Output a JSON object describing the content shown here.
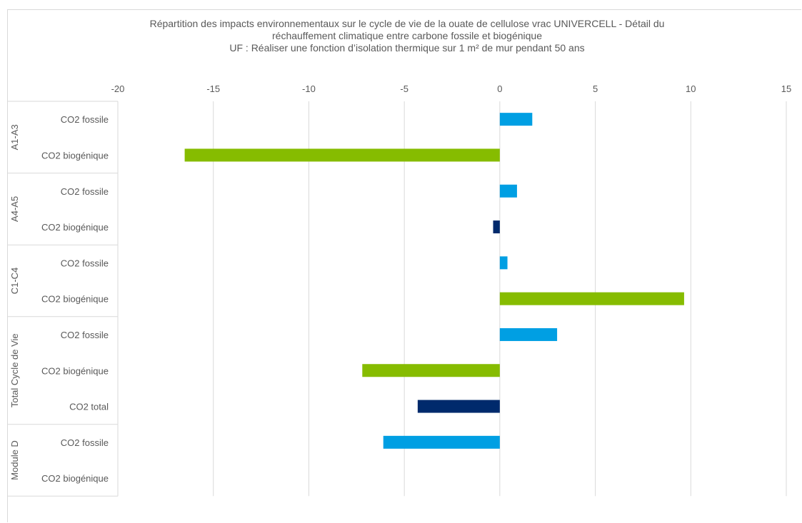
{
  "chart_data": {
    "type": "bar",
    "orientation": "horizontal",
    "title_lines": [
      "Répartition des impacts environnementaux sur le cycle de vie de la ouate de cellulose vrac UNIVERCELL - Détail du",
      "réchauffement climatique entre carbone fossile et biogénique",
      "UF : Réaliser une fonction d’isolation thermique sur 1 m² de mur pendant 50 ans"
    ],
    "xlim": [
      -20,
      15
    ],
    "xticks": [
      -20,
      -15,
      -10,
      -5,
      0,
      5,
      10,
      15
    ],
    "x_axis_position": "top",
    "grid": true,
    "colors": {
      "fossile": "#009fe3",
      "biogenique": "#86bc00",
      "dark": "#002a6c"
    },
    "groups": [
      {
        "name": "A1-A3",
        "rows": [
          {
            "label": "CO2 fossile",
            "value": 1.7,
            "color": "#009fe3"
          },
          {
            "label": "CO2 biogénique",
            "value": -16.5,
            "color": "#86bc00"
          }
        ]
      },
      {
        "name": "A4-A5",
        "rows": [
          {
            "label": "CO2 fossile",
            "value": 0.9,
            "color": "#009fe3"
          },
          {
            "label": "CO2 biogénique",
            "value": -0.35,
            "color": "#002a6c"
          }
        ]
      },
      {
        "name": "C1-C4",
        "rows": [
          {
            "label": "CO2 fossile",
            "value": 0.4,
            "color": "#009fe3"
          },
          {
            "label": "CO2 biogénique",
            "value": 9.65,
            "color": "#86bc00"
          }
        ]
      },
      {
        "name": "Total Cycle de Vie",
        "rows": [
          {
            "label": "CO2 fossile",
            "value": 3.0,
            "color": "#009fe3"
          },
          {
            "label": "CO2 biogénique",
            "value": -7.2,
            "color": "#86bc00"
          },
          {
            "label": "CO2 total",
            "value": -4.3,
            "color": "#002a6c"
          }
        ]
      },
      {
        "name": "Module D",
        "rows": [
          {
            "label": "CO2 fossile",
            "value": -6.1,
            "color": "#009fe3"
          },
          {
            "label": "CO2 biogénique",
            "value": 0,
            "color": "#86bc00"
          }
        ]
      }
    ]
  }
}
